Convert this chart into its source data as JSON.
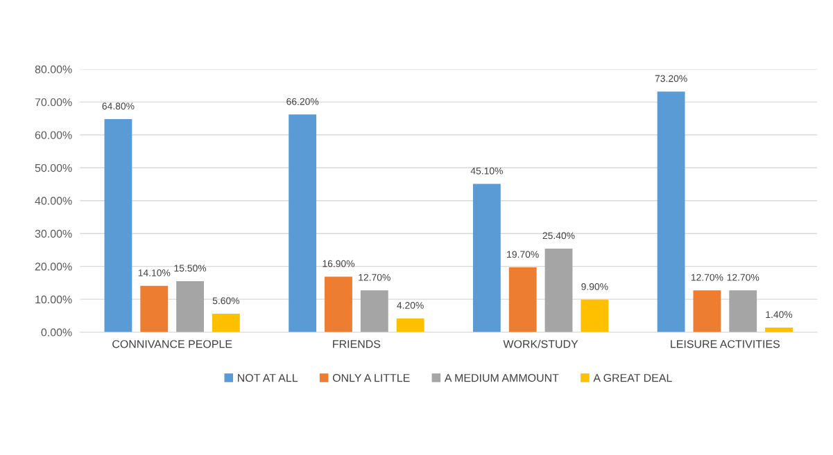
{
  "chart_data": {
    "type": "bar",
    "categories": [
      "CONNIVANCE PEOPLE",
      "FRIENDS",
      "WORK/STUDY",
      "LEISURE ACTIVITIES"
    ],
    "series": [
      {
        "name": "NOT AT ALL",
        "color": "#5b9bd5",
        "values": [
          64.8,
          66.2,
          45.1,
          73.2
        ],
        "value_labels": [
          "64.80%",
          "66.20%",
          "45.10%",
          "73.20%"
        ]
      },
      {
        "name": "ONLY A LITTLE",
        "color": "#ed7d31",
        "values": [
          14.1,
          16.9,
          19.7,
          12.7
        ],
        "value_labels": [
          "14.10%",
          "16.90%",
          "19.70%",
          "12.70%"
        ]
      },
      {
        "name": "A MEDIUM AMMOUNT",
        "color": "#a5a5a5",
        "values": [
          15.5,
          12.7,
          25.4,
          12.7
        ],
        "value_labels": [
          "15.50%",
          "12.70%",
          "25.40%",
          "12.70%"
        ]
      },
      {
        "name": "A GREAT DEAL",
        "color": "#ffc000",
        "values": [
          5.6,
          4.2,
          9.9,
          1.4
        ],
        "value_labels": [
          "5.60%",
          "4.20%",
          "9.90%",
          "1.40%"
        ]
      }
    ],
    "ylim": [
      0,
      80
    ],
    "yticks": [
      {
        "value": 0,
        "label": "0.00%"
      },
      {
        "value": 10,
        "label": "10.00%"
      },
      {
        "value": 20,
        "label": "20.00%"
      },
      {
        "value": 30,
        "label": "30.00%"
      },
      {
        "value": 40,
        "label": "40.00%"
      },
      {
        "value": 50,
        "label": "50.00%"
      },
      {
        "value": 60,
        "label": "60.00%"
      },
      {
        "value": 70,
        "label": "70.00%"
      },
      {
        "value": 80,
        "label": "80.00%"
      }
    ],
    "grid": "y",
    "legend": "bottom"
  }
}
